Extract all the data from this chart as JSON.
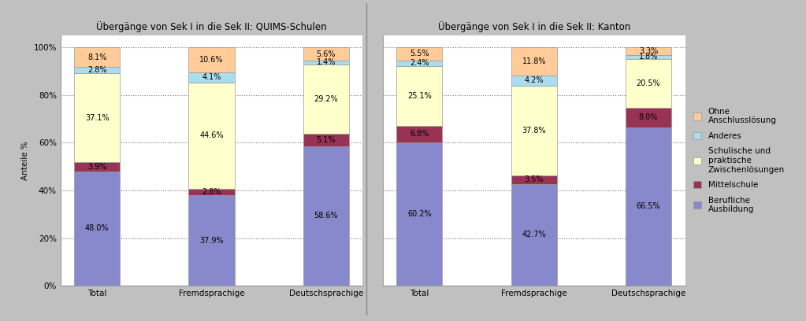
{
  "title_left": "Übergänge von Sek I in die Sek II: QUIMS-Schulen",
  "title_right": "Übergänge von Sek I in die Sek II: Kanton",
  "categories": [
    "Total",
    "Fremdsprachige",
    "Deutschsprachige"
  ],
  "ylabel": "Anteile %",
  "colors": {
    "Berufliche Ausbildung": "#8888cc",
    "Mittelschule": "#993355",
    "Schulische und praktische Zwischenlösungen": "#ffffcc",
    "Anderes": "#aaddee",
    "Ohne Anschlusslösung": "#ffcc99"
  },
  "left_data": {
    "Berufliche Ausbildung": [
      48.0,
      37.9,
      58.6
    ],
    "Mittelschule": [
      3.9,
      2.8,
      5.1
    ],
    "Schulische und praktische Zwischenlösungen": [
      37.1,
      44.6,
      29.2
    ],
    "Anderes": [
      2.8,
      4.1,
      1.4
    ],
    "Ohne Anschlusslösung": [
      8.1,
      10.6,
      5.6
    ]
  },
  "right_data": {
    "Berufliche Ausbildung": [
      60.2,
      42.7,
      66.5
    ],
    "Mittelschule": [
      6.8,
      3.5,
      8.0
    ],
    "Schulische und praktische Zwischenlösungen": [
      25.1,
      37.8,
      20.5
    ],
    "Anderes": [
      2.4,
      4.2,
      1.8
    ],
    "Ohne Anschlusslösung": [
      5.5,
      11.8,
      3.3
    ]
  },
  "bar_width": 0.4,
  "background_color": "#c0c0c0",
  "plot_bg_color": "#ffffff",
  "title_fontsize": 8.5,
  "label_fontsize": 7,
  "tick_fontsize": 7.5,
  "legend_fontsize": 7.5
}
